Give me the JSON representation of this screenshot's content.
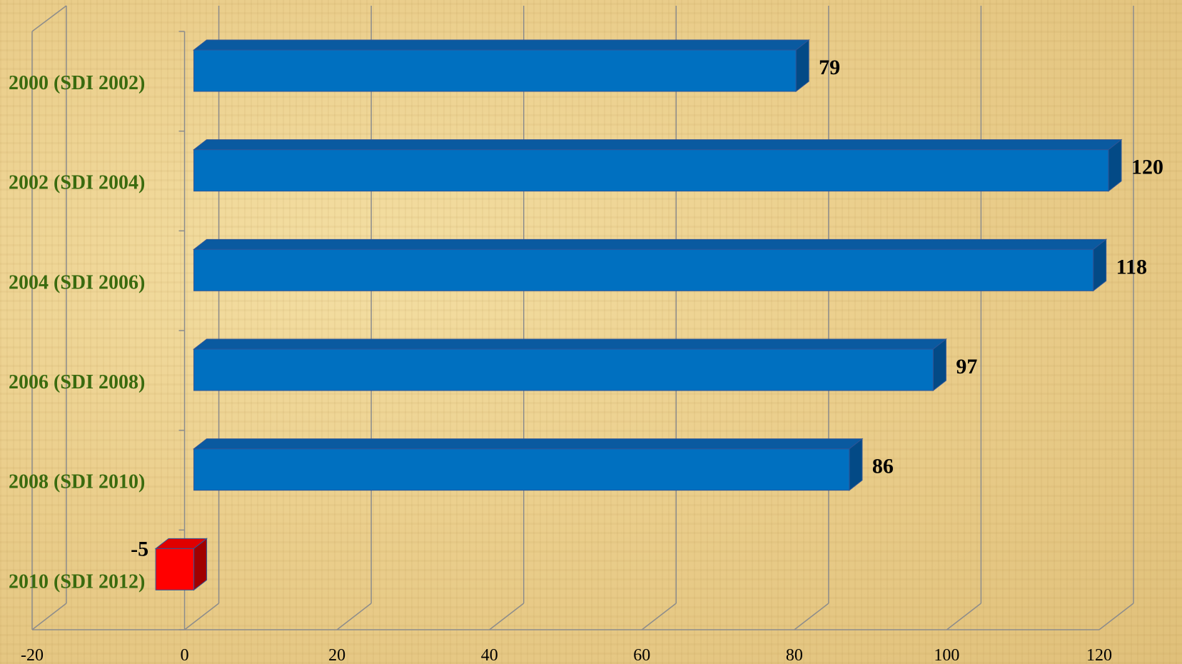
{
  "chart_data": {
    "type": "bar",
    "orientation": "horizontal",
    "style": "3d",
    "categories": [
      "2000 (SDI 2002)",
      "2002 (SDI 2004)",
      "2004 (SDI 2006)",
      "2006 (SDI 2008)",
      "2008 (SDI 2010)",
      "2010 (SDI 2012)"
    ],
    "values": [
      79,
      120,
      118,
      97,
      86,
      -5
    ],
    "data_labels": [
      "79",
      "120",
      "118",
      "97",
      "86",
      "-5"
    ],
    "xlim": [
      -20,
      120
    ],
    "x_ticks": [
      -20,
      0,
      20,
      40,
      60,
      80,
      100,
      120
    ],
    "x_tick_labels": [
      "-20",
      "0",
      "20",
      "40",
      "60",
      "80",
      "100",
      "120"
    ],
    "grid": true,
    "legend": "none",
    "title": "",
    "xlabel": "",
    "ylabel": "",
    "colors": {
      "positive_front": "#0070c0",
      "positive_top": "#0a5aa0",
      "positive_side": "#034a86",
      "negative_front": "#ff0000",
      "negative_top": "#e00000",
      "negative_side": "#a00000",
      "category_label": "#3a6b0f",
      "gridline": "#8c8c8c"
    }
  }
}
